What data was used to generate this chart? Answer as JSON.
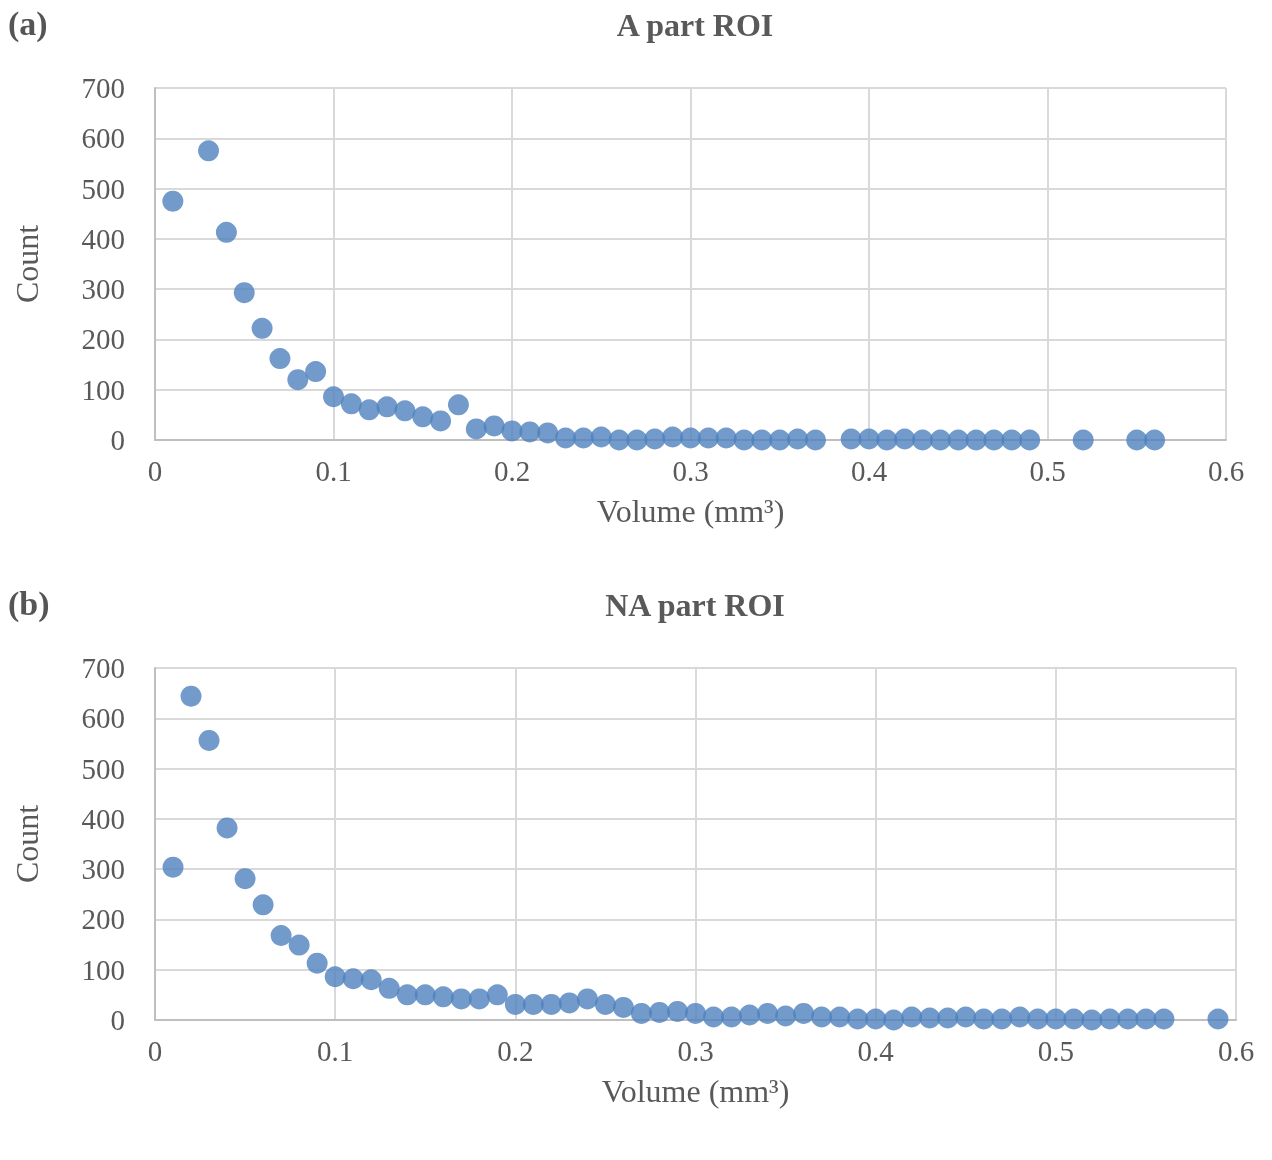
{
  "chart_data": [
    {
      "type": "scatter",
      "title": "A part ROI",
      "annotations": [
        "(a)"
      ],
      "xlabel": "Volume (mm³)",
      "ylabel": "Count",
      "xlim": [
        0,
        0.6
      ],
      "xticks": [
        0,
        0.1,
        0.2,
        0.3,
        0.4,
        0.5,
        0.6
      ],
      "ylim": [
        0,
        700
      ],
      "yticks": [
        0,
        100,
        200,
        300,
        400,
        500,
        600,
        700
      ],
      "grid": true,
      "marker": "circle",
      "series": [
        {
          "color": "#4f81bd",
          "x": [
            0.01,
            0.03,
            0.04,
            0.05,
            0.06,
            0.07,
            0.08,
            0.09,
            0.1,
            0.11,
            0.12,
            0.13,
            0.14,
            0.15,
            0.16,
            0.17,
            0.18,
            0.19,
            0.2,
            0.21,
            0.22,
            0.23,
            0.24,
            0.25,
            0.26,
            0.27,
            0.28,
            0.29,
            0.3,
            0.31,
            0.32,
            0.33,
            0.34,
            0.35,
            0.36,
            0.37,
            0.39,
            0.4,
            0.41,
            0.42,
            0.43,
            0.44,
            0.45,
            0.46,
            0.47,
            0.48,
            0.49,
            0.52,
            0.55,
            0.56
          ],
          "values": [
            475,
            575,
            413,
            293,
            222,
            162,
            120,
            136,
            86,
            72,
            60,
            66,
            58,
            46,
            38,
            70,
            22,
            28,
            18,
            16,
            14,
            4,
            4,
            6,
            0,
            0,
            2,
            6,
            4,
            4,
            4,
            0,
            0,
            0,
            2,
            0,
            2,
            2,
            0,
            2,
            0,
            0,
            0,
            0,
            0,
            0,
            0,
            0,
            0,
            0
          ]
        }
      ]
    },
    {
      "type": "scatter",
      "title": "NA part ROI",
      "annotations": [
        "(b)"
      ],
      "xlabel": "Volume (mm³)",
      "ylabel": "Count",
      "xlim": [
        0,
        0.6
      ],
      "xticks": [
        0,
        0.1,
        0.2,
        0.3,
        0.4,
        0.5,
        0.6
      ],
      "ylim": [
        0,
        700
      ],
      "yticks": [
        0,
        100,
        200,
        300,
        400,
        500,
        600,
        700
      ],
      "grid": true,
      "marker": "circle",
      "series": [
        {
          "color": "#4f81bd",
          "x": [
            0.01,
            0.02,
            0.03,
            0.04,
            0.05,
            0.06,
            0.07,
            0.08,
            0.09,
            0.1,
            0.11,
            0.12,
            0.13,
            0.14,
            0.15,
            0.16,
            0.17,
            0.18,
            0.19,
            0.2,
            0.21,
            0.22,
            0.23,
            0.24,
            0.25,
            0.26,
            0.27,
            0.28,
            0.29,
            0.3,
            0.31,
            0.32,
            0.33,
            0.34,
            0.35,
            0.36,
            0.37,
            0.38,
            0.39,
            0.4,
            0.41,
            0.42,
            0.43,
            0.44,
            0.45,
            0.46,
            0.47,
            0.48,
            0.49,
            0.5,
            0.51,
            0.52,
            0.53,
            0.54,
            0.55,
            0.56,
            0.59
          ],
          "values": [
            304,
            644,
            556,
            382,
            281,
            229,
            168,
            149,
            113,
            86,
            82,
            80,
            63,
            50,
            50,
            46,
            42,
            42,
            50,
            31,
            31,
            31,
            34,
            42,
            31,
            25,
            13,
            15,
            17,
            13,
            6,
            6,
            10,
            13,
            8,
            13,
            6,
            6,
            2,
            2,
            0,
            6,
            4,
            4,
            6,
            2,
            2,
            6,
            2,
            2,
            2,
            0,
            2,
            2,
            2,
            2,
            2
          ]
        }
      ]
    }
  ]
}
